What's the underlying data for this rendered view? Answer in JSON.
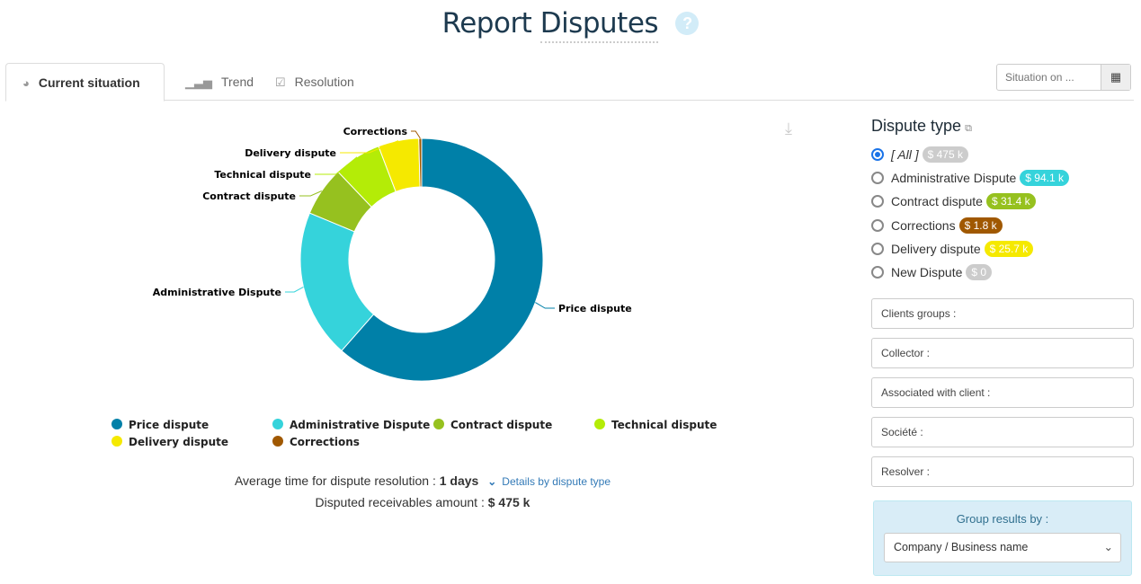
{
  "header": {
    "title_prefix": "Report",
    "title_strong": "Disputes",
    "help": "?"
  },
  "tabs": [
    {
      "label": "Current situation",
      "icon": "pie-chart-icon"
    },
    {
      "label": "Trend",
      "icon": "bar-signal-icon"
    },
    {
      "label": "Resolution",
      "icon": "checkbox-icon"
    }
  ],
  "situation": {
    "placeholder": "Situation on ...",
    "icon": "calendar-icon"
  },
  "chart_data": {
    "type": "pie",
    "variant": "donut",
    "categories": [
      "Price dispute",
      "Administrative Dispute",
      "Contract dispute",
      "Technical dispute",
      "Delivery dispute",
      "Corrections"
    ],
    "values": [
      292,
      94.1,
      31.4,
      30,
      25.7,
      1.8
    ],
    "unit": "$ k",
    "colors": [
      "#0080a8",
      "#35d3db",
      "#96c11f",
      "#b4ec07",
      "#f5e900",
      "#a05800"
    ],
    "legend_position": "bottom"
  },
  "stats": {
    "avg_label": "Average time for dispute resolution :",
    "avg_value": "1 days",
    "details_link": "Details by dispute type",
    "amount_label": "Disputed receivables amount :",
    "amount_value": "$ 475 k"
  },
  "sidebar": {
    "title": "Dispute type",
    "options": [
      {
        "label": "[ All ]",
        "amount": "$ 475 k",
        "color": "#cccccc",
        "checked": true
      },
      {
        "label": "Administrative Dispute",
        "amount": "$ 94.1 k",
        "color": "#35d3db"
      },
      {
        "label": "Contract dispute",
        "amount": "$ 31.4 k",
        "color": "#96c11f"
      },
      {
        "label": "Corrections",
        "amount": "$ 1.8 k",
        "color": "#a05800"
      },
      {
        "label": "Delivery dispute",
        "amount": "$ 25.7 k",
        "color": "#f5e900"
      },
      {
        "label": "New Dispute",
        "amount": "$ 0",
        "color": "#cccccc"
      }
    ],
    "filters": [
      "Clients groups :",
      "Collector :",
      "Associated with client :",
      "Société :",
      "Resolver :"
    ],
    "group_label": "Group results by :",
    "group_value": "Company / Business name"
  }
}
